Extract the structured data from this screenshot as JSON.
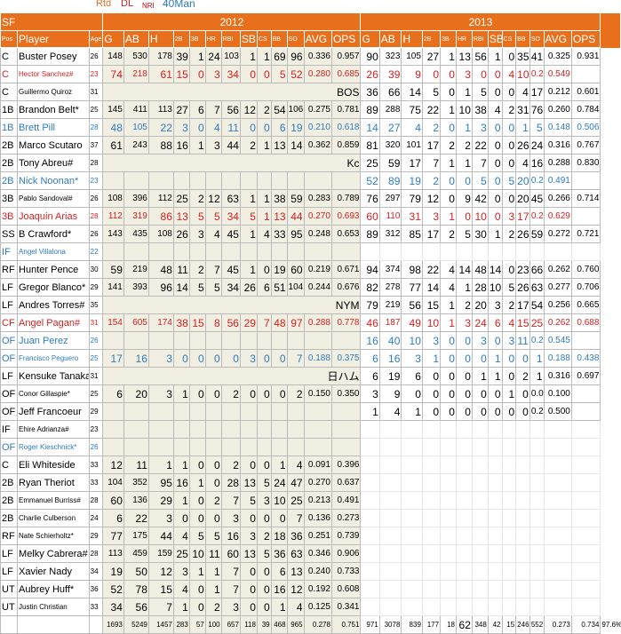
{
  "legend": {
    "rtd": "Rtd",
    "dl": "DL",
    "nri": "NRI",
    "forty": "40Man"
  },
  "team": "SF",
  "years": [
    "2012",
    "2013"
  ],
  "col_headers": {
    "pos": "Pos",
    "player": "Player",
    "age": "Age",
    "stats": [
      "G",
      "AB",
      "H",
      "2B",
      "3B",
      "HR",
      "RBI",
      "SB",
      "CS",
      "BB",
      "SO",
      "AVG",
      "OPS"
    ]
  },
  "players": [
    {
      "pos": "C",
      "name": "Buster Posey",
      "age": "26",
      "style": "",
      "s12": [
        "148",
        "530",
        "178",
        "39",
        "1",
        "24",
        "103",
        "1",
        "1",
        "69",
        "96",
        "0.336",
        "0.957"
      ],
      "s13": [
        "90",
        "323",
        "105",
        "27",
        "1",
        "13",
        "56",
        "1",
        "0",
        "35",
        "41",
        "0.325",
        "0.931"
      ]
    },
    {
      "pos": "C",
      "name": "Hector Sanchez#",
      "age": "23",
      "style": "red",
      "s12": [
        "74",
        "218",
        "61",
        "15",
        "0",
        "3",
        "34",
        "0",
        "0",
        "5",
        "52",
        "0.280",
        "0.685"
      ],
      "s13": [
        "26",
        "39",
        "9",
        "0",
        "0",
        "3",
        "0",
        "0",
        "4",
        "10",
        "0.231",
        "0.549",
        ""
      ]
    },
    {
      "pos": "C",
      "name": "Guillermo Quiroz",
      "age": "31",
      "style": "",
      "note12": "BOS",
      "s13": [
        "36",
        "66",
        "14",
        "5",
        "0",
        "1",
        "5",
        "0",
        "0",
        "4",
        "17",
        "0.212",
        "0.601"
      ]
    },
    {
      "pos": "1B",
      "name": "Brandon Belt*",
      "age": "25",
      "style": "",
      "s12": [
        "145",
        "411",
        "113",
        "27",
        "6",
        "7",
        "56",
        "12",
        "2",
        "54",
        "106",
        "0.275",
        "0.781"
      ],
      "s13": [
        "89",
        "288",
        "75",
        "22",
        "1",
        "10",
        "38",
        "4",
        "2",
        "31",
        "76",
        "0.260",
        "0.784"
      ]
    },
    {
      "pos": "1B",
      "name": "Brett Pill",
      "age": "28",
      "style": "blue",
      "s12": [
        "48",
        "105",
        "22",
        "3",
        "0",
        "4",
        "11",
        "0",
        "0",
        "6",
        "19",
        "0.210",
        "0.618"
      ],
      "s13": [
        "14",
        "27",
        "4",
        "2",
        "0",
        "1",
        "3",
        "0",
        "0",
        "1",
        "5",
        "0.148",
        "0.506"
      ]
    },
    {
      "pos": "2B",
      "name": "Marco Scutaro",
      "age": "37",
      "style": "",
      "s12": [
        "61",
        "243",
        "88",
        "16",
        "1",
        "3",
        "44",
        "2",
        "1",
        "13",
        "14",
        "0.362",
        "0.859"
      ],
      "s13": [
        "81",
        "320",
        "101",
        "17",
        "2",
        "2",
        "22",
        "0",
        "0",
        "26",
        "24",
        "0.316",
        "0.767"
      ],
      "note12": "COL"
    },
    {
      "pos": "2B",
      "name": "Tony Abreu#",
      "age": "28",
      "style": "",
      "note12": "Kc",
      "s13": [
        "25",
        "59",
        "17",
        "7",
        "1",
        "1",
        "7",
        "0",
        "0",
        "4",
        "16",
        "0.288",
        "0.830"
      ]
    },
    {
      "pos": "2B",
      "name": "Nick Noonan*",
      "age": "23",
      "style": "blue",
      "s13": [
        "52",
        "89",
        "19",
        "2",
        "0",
        "0",
        "5",
        "0",
        "5",
        "20",
        "0.213",
        "0.491",
        ""
      ]
    },
    {
      "pos": "3B",
      "name": "Pablo Sandoval#",
      "age": "26",
      "style": "",
      "s12": [
        "108",
        "396",
        "112",
        "25",
        "2",
        "12",
        "63",
        "1",
        "1",
        "38",
        "59",
        "0.283",
        "0.789"
      ],
      "s13": [
        "76",
        "297",
        "79",
        "12",
        "0",
        "9",
        "42",
        "0",
        "0",
        "20",
        "45",
        "0.266",
        "0.714"
      ]
    },
    {
      "pos": "3B",
      "name": "Joaquin Arias",
      "age": "28",
      "style": "red",
      "s12": [
        "112",
        "319",
        "86",
        "13",
        "5",
        "5",
        "34",
        "5",
        "1",
        "13",
        "44",
        "0.270",
        "0.693"
      ],
      "s13": [
        "60",
        "110",
        "31",
        "3",
        "1",
        "0",
        "10",
        "0",
        "3",
        "17",
        "0.282",
        "0.629",
        ""
      ]
    },
    {
      "pos": "SS",
      "name": "B Crawford*",
      "age": "26",
      "style": "",
      "s12": [
        "143",
        "435",
        "108",
        "26",
        "3",
        "4",
        "45",
        "1",
        "4",
        "33",
        "95",
        "0.248",
        "0.653"
      ],
      "s13": [
        "89",
        "312",
        "85",
        "17",
        "2",
        "5",
        "30",
        "1",
        "2",
        "26",
        "59",
        "0.272",
        "0.721"
      ]
    },
    {
      "pos": "IF",
      "name": "Angel Villalona",
      "age": "22",
      "style": "blue"
    },
    {
      "pos": "RF",
      "name": "Hunter Pence",
      "age": "30",
      "style": "",
      "s12": [
        "59",
        "219",
        "48",
        "11",
        "2",
        "7",
        "45",
        "1",
        "0",
        "19",
        "60",
        "0.219",
        "0.671"
      ],
      "s13": [
        "94",
        "374",
        "98",
        "22",
        "4",
        "14",
        "48",
        "14",
        "0",
        "23",
        "66",
        "0.262",
        "0.760"
      ],
      "note12": "PHI"
    },
    {
      "pos": "LF",
      "name": "Gregor Blanco*",
      "age": "29",
      "style": "",
      "s12": [
        "141",
        "393",
        "96",
        "14",
        "5",
        "5",
        "34",
        "26",
        "6",
        "51",
        "104",
        "0.244",
        "0.676"
      ],
      "s13": [
        "82",
        "278",
        "77",
        "14",
        "4",
        "1",
        "28",
        "10",
        "5",
        "26",
        "63",
        "0.277",
        "0.706"
      ]
    },
    {
      "pos": "LF",
      "name": "Andres Torres#",
      "age": "35",
      "style": "",
      "note12": "NYM",
      "s13": [
        "79",
        "219",
        "56",
        "15",
        "1",
        "2",
        "20",
        "3",
        "2",
        "17",
        "54",
        "0.256",
        "0.665"
      ]
    },
    {
      "pos": "CF",
      "name": "Angel Pagan#",
      "age": "31",
      "style": "red",
      "s12": [
        "154",
        "605",
        "174",
        "38",
        "15",
        "8",
        "56",
        "29",
        "7",
        "48",
        "97",
        "0.288",
        "0.778"
      ],
      "s13": [
        "46",
        "187",
        "49",
        "10",
        "1",
        "3",
        "24",
        "6",
        "4",
        "15",
        "25",
        "0.262",
        "0.688"
      ]
    },
    {
      "pos": "OF",
      "name": "Juan Perez",
      "age": "26",
      "style": "blue",
      "s13": [
        "16",
        "40",
        "10",
        "3",
        "0",
        "0",
        "3",
        "0",
        "3",
        "11",
        "0.238",
        "0.545",
        ""
      ]
    },
    {
      "pos": "OF",
      "name": "Francisco Peguero",
      "age": "25",
      "style": "blue",
      "s12": [
        "17",
        "16",
        "3",
        "0",
        "0",
        "0",
        "0",
        "3",
        "0",
        "0",
        "7",
        "0.188",
        "0.375"
      ],
      "s13": [
        "6",
        "16",
        "3",
        "1",
        "0",
        "0",
        "0",
        "1",
        "0",
        "0",
        "1",
        "0.188",
        "0.438"
      ]
    },
    {
      "pos": "LF",
      "name": "Kensuke Tanaka",
      "age": "31",
      "style": "",
      "note12": "日ハム",
      "s13": [
        "6",
        "19",
        "6",
        "0",
        "0",
        "0",
        "1",
        "1",
        "0",
        "2",
        "1",
        "0.316",
        "0.697"
      ]
    },
    {
      "pos": "OF",
      "name": "Conor Gillaspie*",
      "age": "25",
      "style": "",
      "s12": [
        "6",
        "20",
        "3",
        "1",
        "0",
        "0",
        "2",
        "0",
        "0",
        "0",
        "2",
        "0.150",
        "0.350"
      ],
      "s13": [
        "3",
        "9",
        "0",
        "0",
        "0",
        "0",
        "0",
        "0",
        "1",
        "0",
        "0.000",
        "0.100",
        ""
      ]
    },
    {
      "pos": "OF",
      "name": "Jeff Francoeur",
      "age": "29",
      "style": "",
      "s13": [
        "1",
        "4",
        "1",
        "0",
        "0",
        "0",
        "0",
        "0",
        "0",
        "0",
        "0.250",
        "0.500",
        ""
      ]
    },
    {
      "pos": "IF",
      "name": "Ehire Adrianza#",
      "age": "23",
      "style": ""
    },
    {
      "pos": "OF",
      "name": "Roger Kieschnick*",
      "age": "26",
      "style": "blue"
    },
    {
      "pos": "C",
      "name": "Eli Whiteside",
      "age": "33",
      "style": "",
      "s12": [
        "12",
        "11",
        "1",
        "1",
        "0",
        "0",
        "2",
        "0",
        "0",
        "1",
        "4",
        "0.091",
        "0.396"
      ]
    },
    {
      "pos": "2B",
      "name": "Ryan Theriot",
      "age": "33",
      "style": "",
      "s12": [
        "104",
        "352",
        "95",
        "16",
        "1",
        "0",
        "28",
        "13",
        "5",
        "24",
        "47",
        "0.270",
        "0.637"
      ]
    },
    {
      "pos": "2B",
      "name": "Emmanuel Burriss#",
      "age": "28",
      "style": "",
      "s12": [
        "60",
        "136",
        "29",
        "1",
        "0",
        "2",
        "7",
        "5",
        "3",
        "10",
        "25",
        "0.213",
        "0.491"
      ]
    },
    {
      "pos": "2B",
      "name": "Charlie Culberson",
      "age": "24",
      "style": "",
      "s12": [
        "6",
        "22",
        "3",
        "0",
        "0",
        "0",
        "3",
        "0",
        "0",
        "0",
        "7",
        "0.136",
        "0.273"
      ]
    },
    {
      "pos": "RF",
      "name": "Nate Schierholtz*",
      "age": "29",
      "style": "",
      "s12": [
        "77",
        "175",
        "44",
        "4",
        "5",
        "5",
        "16",
        "3",
        "2",
        "18",
        "36",
        "0.251",
        "0.739"
      ]
    },
    {
      "pos": "LF",
      "name": "Melky Cabrera#",
      "age": "28",
      "style": "",
      "s12": [
        "113",
        "459",
        "159",
        "25",
        "10",
        "11",
        "60",
        "13",
        "5",
        "36",
        "63",
        "0.346",
        "0.906"
      ]
    },
    {
      "pos": "LF",
      "name": "Xavier Nady",
      "age": "34",
      "style": "",
      "s12": [
        "19",
        "50",
        "12",
        "3",
        "1",
        "1",
        "7",
        "0",
        "0",
        "6",
        "13",
        "0.240",
        "0.733"
      ]
    },
    {
      "pos": "UT",
      "name": "Aubrey Huff*",
      "age": "36",
      "style": "",
      "s12": [
        "52",
        "78",
        "15",
        "4",
        "0",
        "1",
        "7",
        "0",
        "0",
        "16",
        "12",
        "0.192",
        "0.608"
      ]
    },
    {
      "pos": "UT",
      "name": "Justin Christian",
      "age": "33",
      "style": "",
      "s12": [
        "34",
        "56",
        "7",
        "1",
        "0",
        "2",
        "3",
        "0",
        "0",
        "1",
        "4",
        "0.125",
        "0.341"
      ]
    }
  ],
  "totals": {
    "s12": [
      "1693",
      "5249",
      "1457",
      "283",
      "57",
      "100",
      "657",
      "118",
      "39",
      "468",
      "965",
      "0.278",
      "0.751"
    ],
    "s13": [
      "971",
      "3078",
      "839",
      "177",
      "18",
      "62",
      "348",
      "42",
      "15",
      "246",
      "552",
      "0.273",
      "0.734"
    ],
    "extra": "97.6%"
  }
}
